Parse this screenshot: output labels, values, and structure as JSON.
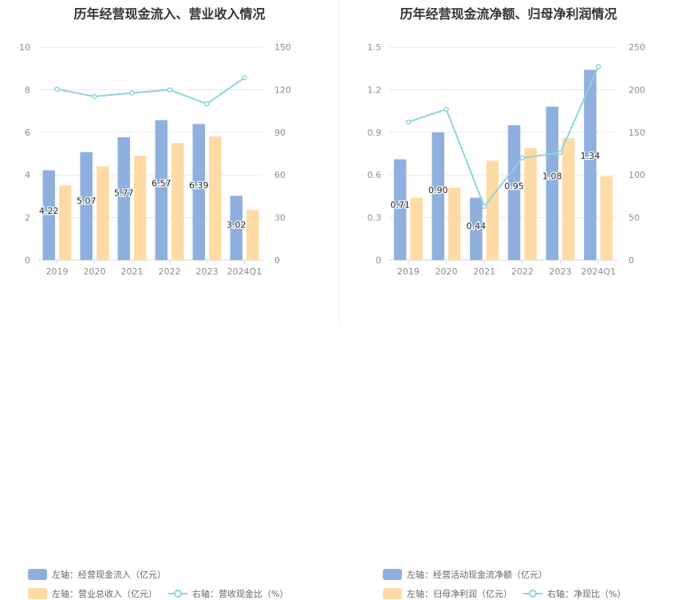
{
  "colors": {
    "bar_primary": "#8fb0de",
    "bar_secondary": "#fedba5",
    "line": "#8ed3dd",
    "grid": "#e6e9f0",
    "axis_text": "#8c8c8c",
    "title_text": "#333333"
  },
  "chart_data": [
    {
      "type": "bar",
      "title": "历年经营现金流入、营业收入情况",
      "categories": [
        "2019",
        "2020",
        "2021",
        "2022",
        "2023",
        "2024Q1"
      ],
      "series": [
        {
          "name": "左轴：经营现金流入（亿元）",
          "axis": "left",
          "kind": "bar",
          "values": [
            4.22,
            5.07,
            5.77,
            6.57,
            6.39,
            3.02
          ],
          "labels": [
            "4.22",
            "5.07",
            "5.77",
            "6.57",
            "6.39",
            "3.02"
          ]
        },
        {
          "name": "左轴：营业总收入（亿元）",
          "axis": "left",
          "kind": "bar",
          "values": [
            3.5,
            4.4,
            4.9,
            5.5,
            5.8,
            2.35
          ]
        },
        {
          "name": "右轴：营收现金比（%）",
          "axis": "right",
          "kind": "line",
          "values": [
            120.4,
            115.2,
            117.7,
            119.9,
            110.0,
            128.5
          ]
        }
      ],
      "y_left": {
        "min": 0,
        "max": 10,
        "ticks": [
          "0",
          "2",
          "4",
          "6",
          "8",
          "10"
        ]
      },
      "y_right": {
        "min": 0,
        "max": 150,
        "ticks": [
          "0",
          "30",
          "60",
          "90",
          "120",
          "150"
        ]
      },
      "grid": true,
      "legend_position": "bottom"
    },
    {
      "type": "bar",
      "title": "历年经营现金流净额、归母净利润情况",
      "categories": [
        "2019",
        "2020",
        "2021",
        "2022",
        "2023",
        "2024Q1"
      ],
      "series": [
        {
          "name": "左轴：经营活动现金流净额（亿元）",
          "axis": "left",
          "kind": "bar",
          "values": [
            0.71,
            0.9,
            0.44,
            0.95,
            1.08,
            1.34
          ],
          "labels": [
            "0.71",
            "0.90",
            "0.44",
            "0.95",
            "1.08",
            "1.34"
          ]
        },
        {
          "name": "左轴：归母净利润（亿元）",
          "axis": "left",
          "kind": "bar",
          "values": [
            0.44,
            0.51,
            0.7,
            0.79,
            0.86,
            0.59
          ]
        },
        {
          "name": "右轴：净现比（%）",
          "axis": "right",
          "kind": "line",
          "values": [
            162,
            177,
            63,
            120,
            126,
            227
          ]
        }
      ],
      "y_left": {
        "min": 0,
        "max": 1.5,
        "ticks": [
          "0",
          "0.3",
          "0.6",
          "0.9",
          "1.2",
          "1.5"
        ]
      },
      "y_right": {
        "min": 0,
        "max": 250,
        "ticks": [
          "0",
          "50",
          "100",
          "150",
          "200",
          "250"
        ]
      },
      "grid": true,
      "legend_position": "bottom"
    }
  ]
}
